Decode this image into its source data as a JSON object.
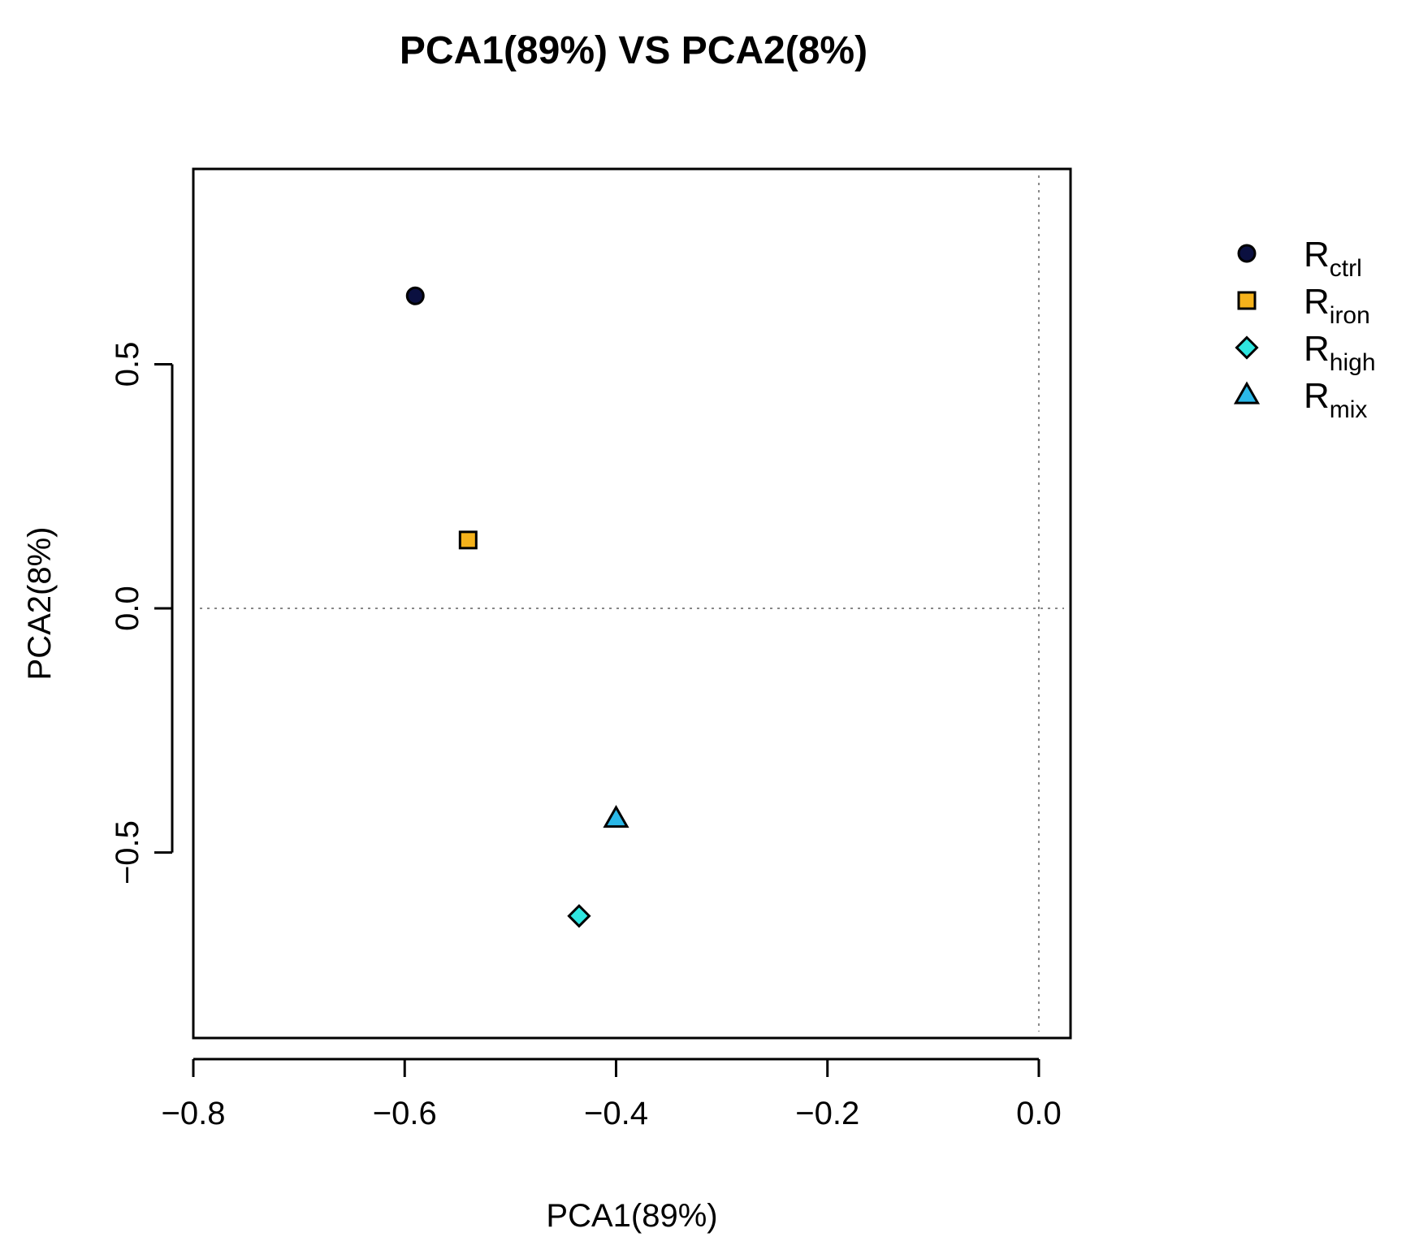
{
  "chart_data": {
    "type": "scatter",
    "title": "PCA1(89%) VS PCA2(8%)",
    "xlabel": "PCA1(89%)",
    "ylabel": "PCA2(8%)",
    "xlim": [
      -0.8,
      0.03
    ],
    "ylim": [
      -0.88,
      0.9
    ],
    "x_ticks": [
      -0.8,
      -0.6,
      -0.4,
      -0.2,
      0.0
    ],
    "x_tick_labels": [
      "−0.8",
      "−0.6",
      "−0.4",
      "−0.2",
      "0.0"
    ],
    "y_ticks": [
      -0.5,
      0.0,
      0.5
    ],
    "y_tick_labels": [
      "−0.5",
      "0.0",
      "0.5"
    ],
    "reference_lines": {
      "x": 0.0,
      "y": 0.0,
      "style": "dotted"
    },
    "legend_position": "right",
    "series": [
      {
        "name": "Rctrl",
        "base": "R",
        "sub": "ctrl",
        "marker": "circle",
        "color": "#0b1040",
        "x": -0.59,
        "y": 0.64
      },
      {
        "name": "Riron",
        "base": "R",
        "sub": "iron",
        "marker": "square",
        "color": "#f5b21b",
        "x": -0.54,
        "y": 0.14
      },
      {
        "name": "Rhigh",
        "base": "R",
        "sub": "high",
        "marker": "diamond",
        "color": "#2fe6e0",
        "x": -0.435,
        "y": -0.63
      },
      {
        "name": "Rmix",
        "base": "R",
        "sub": "mix",
        "marker": "triangle",
        "color": "#2bb8e8",
        "x": -0.4,
        "y": -0.43
      }
    ]
  }
}
